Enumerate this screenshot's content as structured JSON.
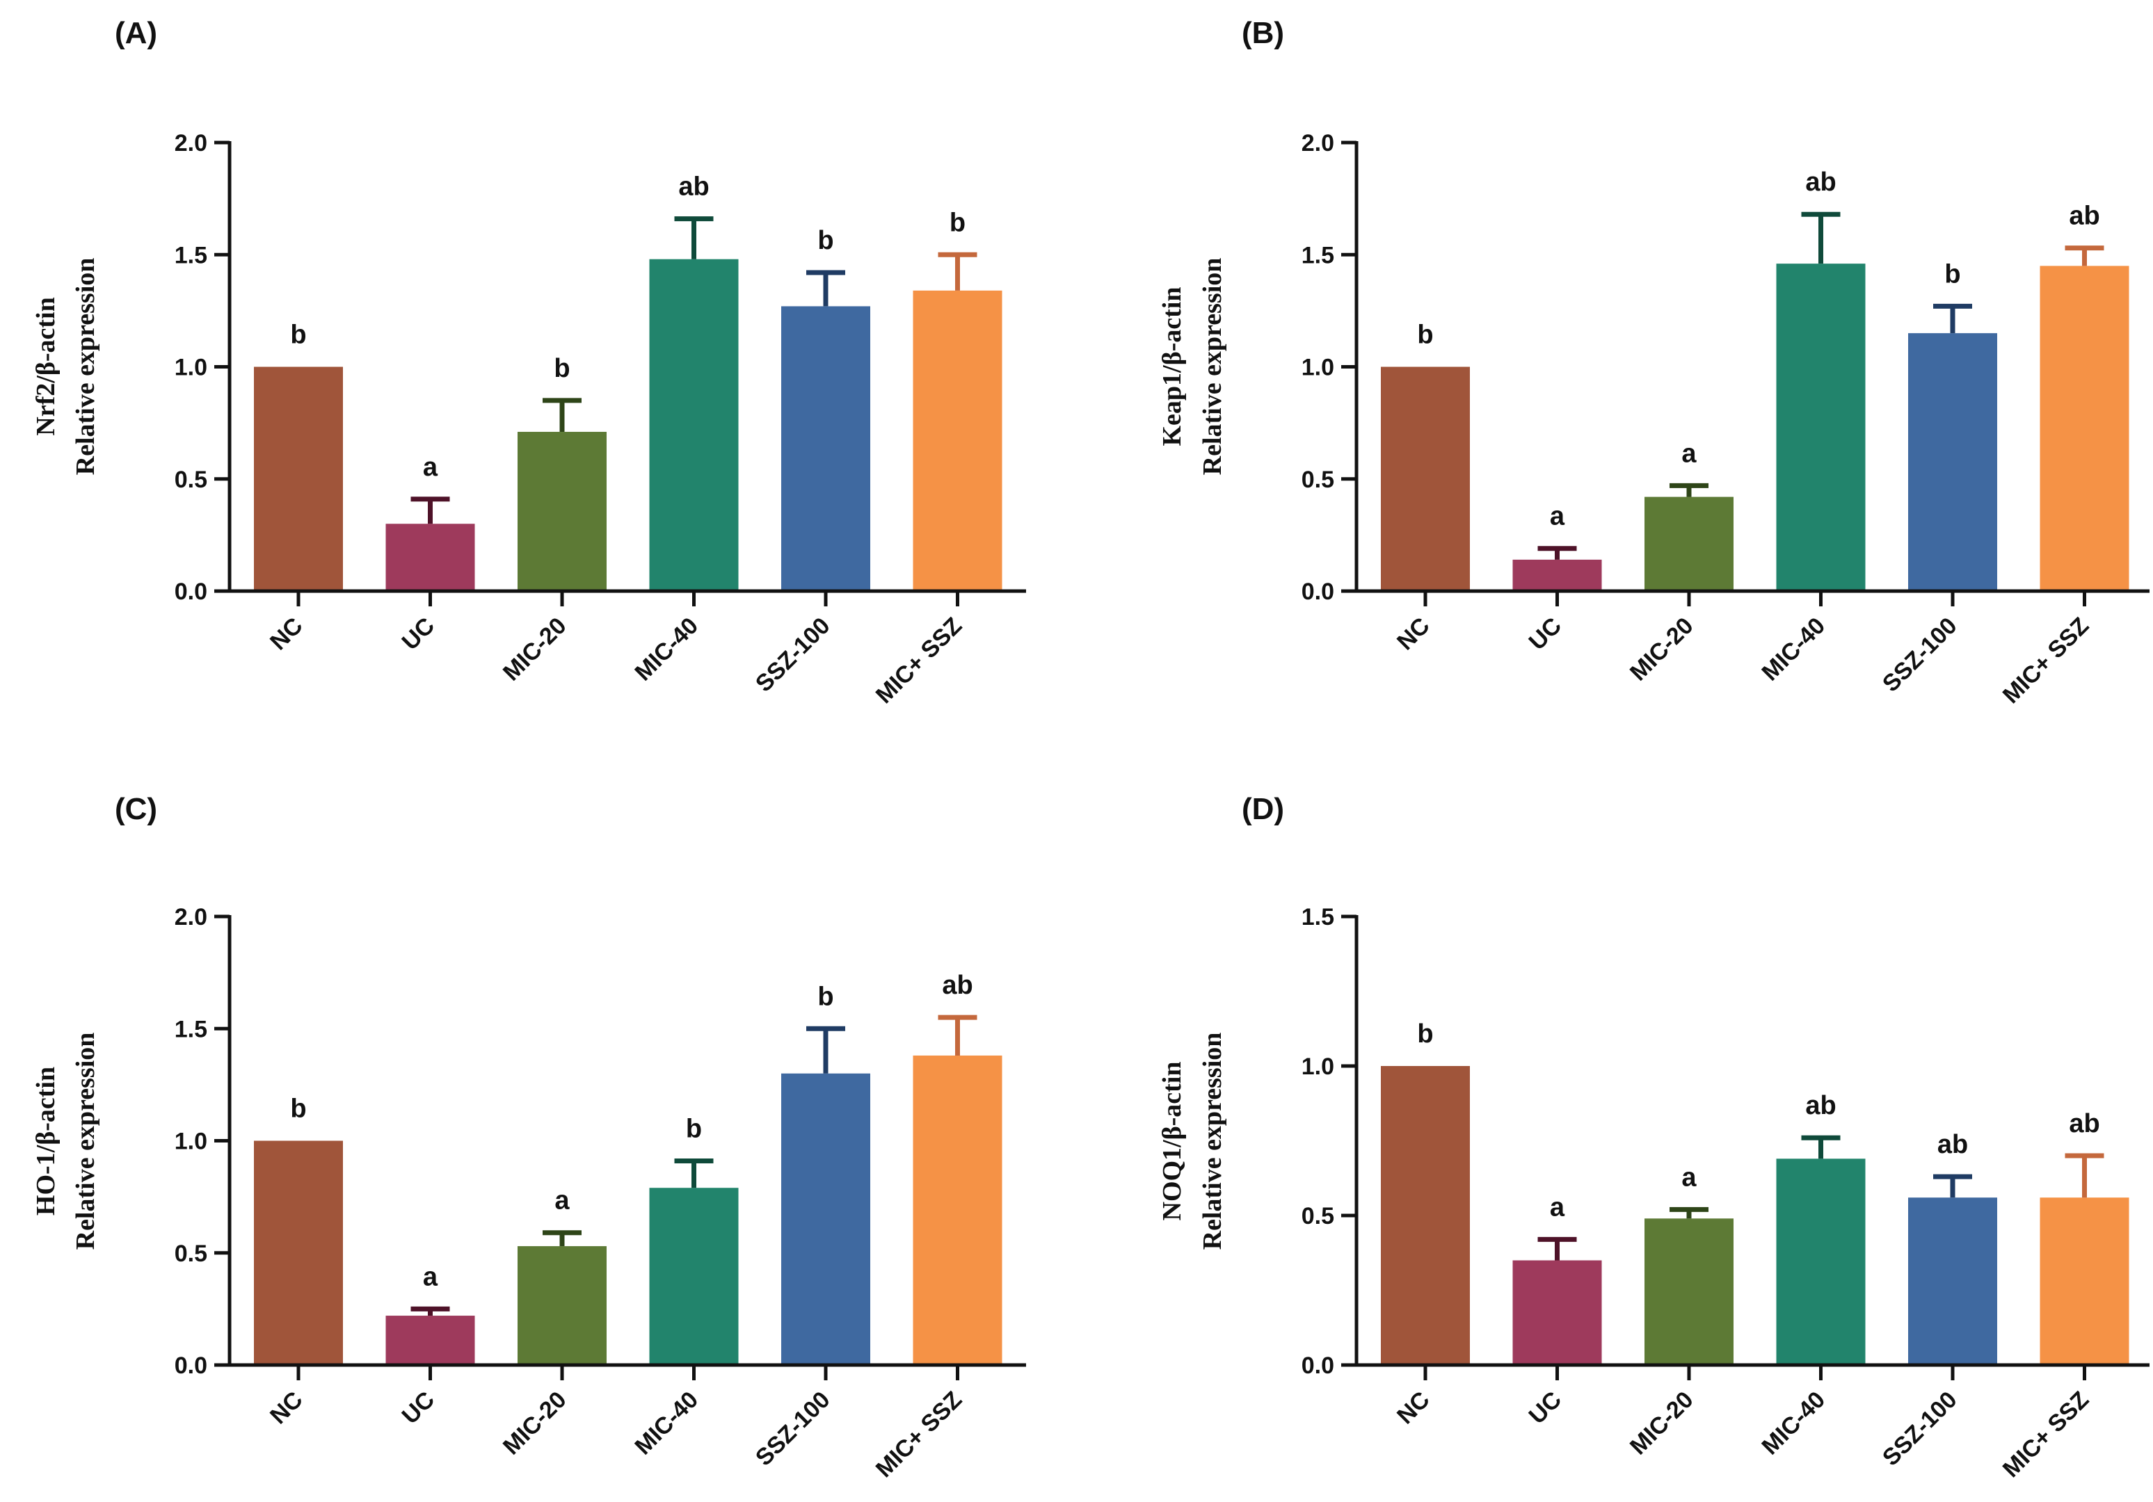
{
  "chart_data": [
    {
      "type": "bar",
      "panel": "(A)",
      "ylabel_line1": "Nrf2/β-actin",
      "ylabel_line2": "Relative expression",
      "ylim": [
        0,
        2.0
      ],
      "yticks": [
        "0.0",
        "0.5",
        "1.0",
        "1.5",
        "2.0"
      ],
      "categories": [
        "NC",
        "UC",
        "MIC-20",
        "MIC-40",
        "SSZ-100",
        "MIC+ SSZ"
      ],
      "values": [
        1.0,
        0.3,
        0.71,
        1.48,
        1.27,
        1.34
      ],
      "errors": [
        0.0,
        0.11,
        0.14,
        0.18,
        0.15,
        0.16
      ],
      "significance": [
        "b",
        "a",
        "b",
        "ab",
        "b",
        "b"
      ]
    },
    {
      "type": "bar",
      "panel": "(B)",
      "ylabel_line1": "Keap1/β-actin",
      "ylabel_line2": "Relative expression",
      "ylim": [
        0,
        2.0
      ],
      "yticks": [
        "0.0",
        "0.5",
        "1.0",
        "1.5",
        "2.0"
      ],
      "categories": [
        "NC",
        "UC",
        "MIC-20",
        "MIC-40",
        "SSZ-100",
        "MIC+ SSZ"
      ],
      "values": [
        1.0,
        0.14,
        0.42,
        1.46,
        1.15,
        1.45
      ],
      "errors": [
        0.0,
        0.05,
        0.05,
        0.22,
        0.12,
        0.08
      ],
      "significance": [
        "b",
        "a",
        "a",
        "ab",
        "b",
        "ab"
      ]
    },
    {
      "type": "bar",
      "panel": "(C)",
      "ylabel_line1": "HO-1/β-actin",
      "ylabel_line2": "Relative expression",
      "ylim": [
        0,
        2.0
      ],
      "yticks": [
        "0.0",
        "0.5",
        "1.0",
        "1.5",
        "2.0"
      ],
      "categories": [
        "NC",
        "UC",
        "MIC-20",
        "MIC-40",
        "SSZ-100",
        "MIC+ SSZ"
      ],
      "values": [
        1.0,
        0.22,
        0.53,
        0.79,
        1.3,
        1.38
      ],
      "errors": [
        0.0,
        0.03,
        0.06,
        0.12,
        0.2,
        0.17
      ],
      "significance": [
        "b",
        "a",
        "a",
        "b",
        "b",
        "ab"
      ]
    },
    {
      "type": "bar",
      "panel": "(D)",
      "ylabel_line1": "NOQ1/β-actin",
      "ylabel_line2": "Relative expression",
      "ylim": [
        0,
        1.5
      ],
      "yticks": [
        "0.0",
        "0.5",
        "1.0",
        "1.5"
      ],
      "categories": [
        "NC",
        "UC",
        "MIC-20",
        "MIC-40",
        "SSZ-100",
        "MIC+ SSZ"
      ],
      "values": [
        1.0,
        0.35,
        0.49,
        0.69,
        0.56,
        0.56
      ],
      "errors": [
        0.0,
        0.07,
        0.03,
        0.07,
        0.07,
        0.14
      ],
      "significance": [
        "b",
        "a",
        "a",
        "ab",
        "ab",
        "ab"
      ]
    }
  ],
  "colors": {
    "bars": [
      "#a0553a",
      "#9e3a5c",
      "#5d7a35",
      "#22846c",
      "#3f69a0",
      "#f59246"
    ],
    "errors": [
      "#5a2a1a",
      "#4e1228",
      "#2e4518",
      "#0f4a3a",
      "#1f3b63",
      "#c4683c"
    ],
    "axis": "#111111"
  }
}
